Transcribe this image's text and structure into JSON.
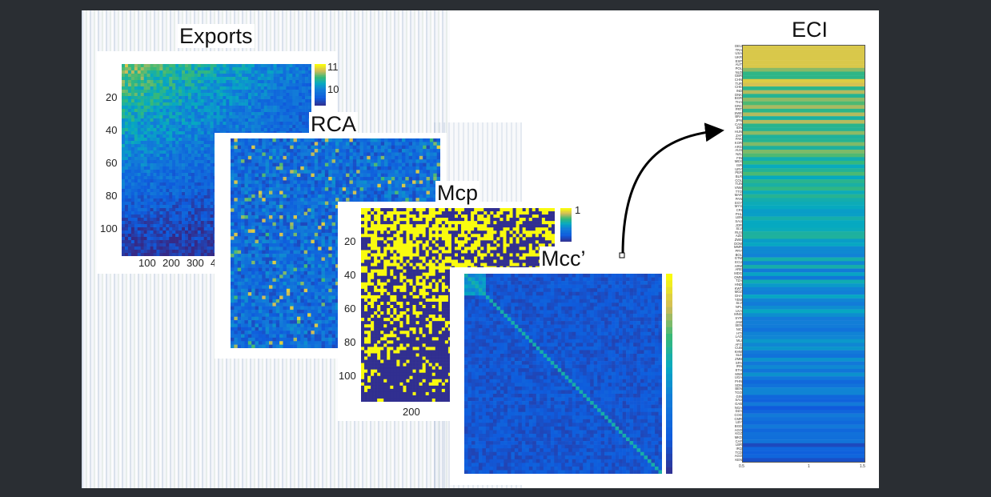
{
  "panels": {
    "exports": {
      "title": "Exports",
      "y_ticks": [
        "20",
        "40",
        "60",
        "80",
        "100"
      ],
      "x_ticks": [
        "100",
        "200",
        "300",
        "4"
      ],
      "colorbar_ticks": [
        "11",
        "10"
      ]
    },
    "rca": {
      "title": "RCA"
    },
    "mcp": {
      "title": "Mcp",
      "y_ticks": [
        "20",
        "40",
        "60",
        "80",
        "100"
      ],
      "x_ticks": [
        "200"
      ],
      "colorbar_ticks": [
        "1"
      ]
    },
    "mcc": {
      "title": "Mcc’"
    },
    "eci": {
      "title": "ECI",
      "x_ticks": [
        "0.5",
        "1",
        "1.5"
      ],
      "row_labels": [
        "DEU",
        "TRA",
        "USA",
        "UKR",
        "ESP",
        "AUT",
        "POL",
        "NLD",
        "GBR",
        "CHN",
        "TUR",
        "CHE",
        "IND",
        "DNK",
        "BGR",
        "THA",
        "GRC",
        "PRT",
        "SWE",
        "BRA",
        "JPN",
        "CAN",
        "IDN",
        "HUN",
        "ZAF",
        "PAK",
        "KOR",
        "ARG",
        "AUS",
        "NZL",
        "FIN",
        "MEX",
        "ISR",
        "URY",
        "PER",
        "BLR",
        "COL",
        "TUN",
        "VNM",
        "TTO",
        "MAR",
        "PAN",
        "EGY",
        "MYS",
        "CRI",
        "PHL",
        "LBN",
        "SAU",
        "JOR",
        "SLV",
        "RUS",
        "AZE",
        "ZWE",
        "DOM",
        "MMR",
        "PRY",
        "BOL",
        "GTM",
        "ECU",
        "ARM",
        "ARE",
        "MDG",
        "OMN",
        "TZA",
        "HND",
        "KWT",
        "MOZ",
        "GHA",
        "YEM",
        "SLV",
        "NPL",
        "LKA",
        "MNG",
        "SYR",
        "JAM",
        "SEN",
        "NIC",
        "HTI",
        "LAO",
        "MLI",
        "AFG",
        "CUB",
        "KHM",
        "SLE",
        "ZMB",
        "SPA",
        "IRN",
        "ETH",
        "MWI",
        "UGA",
        "PHN",
        "SDN",
        "BEN",
        "TGO",
        "GIN",
        "SAU",
        "GAB",
        "NGA",
        "DZA",
        "COG",
        "CMR",
        "LBY",
        "BGD",
        "AGO",
        "KGZ",
        "MKD",
        "CAF",
        "LBR",
        "IRQ",
        "TCD",
        "AGO",
        "KEN"
      ]
    }
  }
}
